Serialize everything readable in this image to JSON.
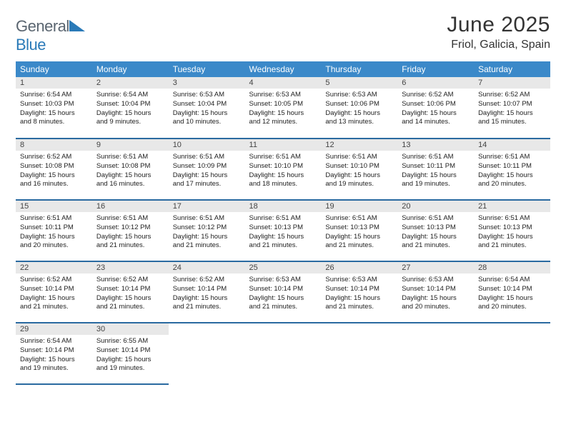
{
  "brand": {
    "t1": "General",
    "t2": "Blue"
  },
  "title": {
    "month": "June 2025",
    "location": "Friol, Galicia, Spain"
  },
  "colors": {
    "headerBg": "#3b89c9",
    "rowBorder": "#2a6aa0",
    "dayBg": "#e8e8e8"
  },
  "weekdays": [
    "Sunday",
    "Monday",
    "Tuesday",
    "Wednesday",
    "Thursday",
    "Friday",
    "Saturday"
  ],
  "days": [
    {
      "n": "1",
      "sr": "6:54 AM",
      "ss": "10:03 PM",
      "dh": "15",
      "dm": "8"
    },
    {
      "n": "2",
      "sr": "6:54 AM",
      "ss": "10:04 PM",
      "dh": "15",
      "dm": "9"
    },
    {
      "n": "3",
      "sr": "6:53 AM",
      "ss": "10:04 PM",
      "dh": "15",
      "dm": "10"
    },
    {
      "n": "4",
      "sr": "6:53 AM",
      "ss": "10:05 PM",
      "dh": "15",
      "dm": "12"
    },
    {
      "n": "5",
      "sr": "6:53 AM",
      "ss": "10:06 PM",
      "dh": "15",
      "dm": "13"
    },
    {
      "n": "6",
      "sr": "6:52 AM",
      "ss": "10:06 PM",
      "dh": "15",
      "dm": "14"
    },
    {
      "n": "7",
      "sr": "6:52 AM",
      "ss": "10:07 PM",
      "dh": "15",
      "dm": "15"
    },
    {
      "n": "8",
      "sr": "6:52 AM",
      "ss": "10:08 PM",
      "dh": "15",
      "dm": "16"
    },
    {
      "n": "9",
      "sr": "6:51 AM",
      "ss": "10:08 PM",
      "dh": "15",
      "dm": "16"
    },
    {
      "n": "10",
      "sr": "6:51 AM",
      "ss": "10:09 PM",
      "dh": "15",
      "dm": "17"
    },
    {
      "n": "11",
      "sr": "6:51 AM",
      "ss": "10:10 PM",
      "dh": "15",
      "dm": "18"
    },
    {
      "n": "12",
      "sr": "6:51 AM",
      "ss": "10:10 PM",
      "dh": "15",
      "dm": "19"
    },
    {
      "n": "13",
      "sr": "6:51 AM",
      "ss": "10:11 PM",
      "dh": "15",
      "dm": "19"
    },
    {
      "n": "14",
      "sr": "6:51 AM",
      "ss": "10:11 PM",
      "dh": "15",
      "dm": "20"
    },
    {
      "n": "15",
      "sr": "6:51 AM",
      "ss": "10:11 PM",
      "dh": "15",
      "dm": "20"
    },
    {
      "n": "16",
      "sr": "6:51 AM",
      "ss": "10:12 PM",
      "dh": "15",
      "dm": "21"
    },
    {
      "n": "17",
      "sr": "6:51 AM",
      "ss": "10:12 PM",
      "dh": "15",
      "dm": "21"
    },
    {
      "n": "18",
      "sr": "6:51 AM",
      "ss": "10:13 PM",
      "dh": "15",
      "dm": "21"
    },
    {
      "n": "19",
      "sr": "6:51 AM",
      "ss": "10:13 PM",
      "dh": "15",
      "dm": "21"
    },
    {
      "n": "20",
      "sr": "6:51 AM",
      "ss": "10:13 PM",
      "dh": "15",
      "dm": "21"
    },
    {
      "n": "21",
      "sr": "6:51 AM",
      "ss": "10:13 PM",
      "dh": "15",
      "dm": "21"
    },
    {
      "n": "22",
      "sr": "6:52 AM",
      "ss": "10:14 PM",
      "dh": "15",
      "dm": "21"
    },
    {
      "n": "23",
      "sr": "6:52 AM",
      "ss": "10:14 PM",
      "dh": "15",
      "dm": "21"
    },
    {
      "n": "24",
      "sr": "6:52 AM",
      "ss": "10:14 PM",
      "dh": "15",
      "dm": "21"
    },
    {
      "n": "25",
      "sr": "6:53 AM",
      "ss": "10:14 PM",
      "dh": "15",
      "dm": "21"
    },
    {
      "n": "26",
      "sr": "6:53 AM",
      "ss": "10:14 PM",
      "dh": "15",
      "dm": "21"
    },
    {
      "n": "27",
      "sr": "6:53 AM",
      "ss": "10:14 PM",
      "dh": "15",
      "dm": "20"
    },
    {
      "n": "28",
      "sr": "6:54 AM",
      "ss": "10:14 PM",
      "dh": "15",
      "dm": "20"
    },
    {
      "n": "29",
      "sr": "6:54 AM",
      "ss": "10:14 PM",
      "dh": "15",
      "dm": "19"
    },
    {
      "n": "30",
      "sr": "6:55 AM",
      "ss": "10:14 PM",
      "dh": "15",
      "dm": "19"
    }
  ]
}
